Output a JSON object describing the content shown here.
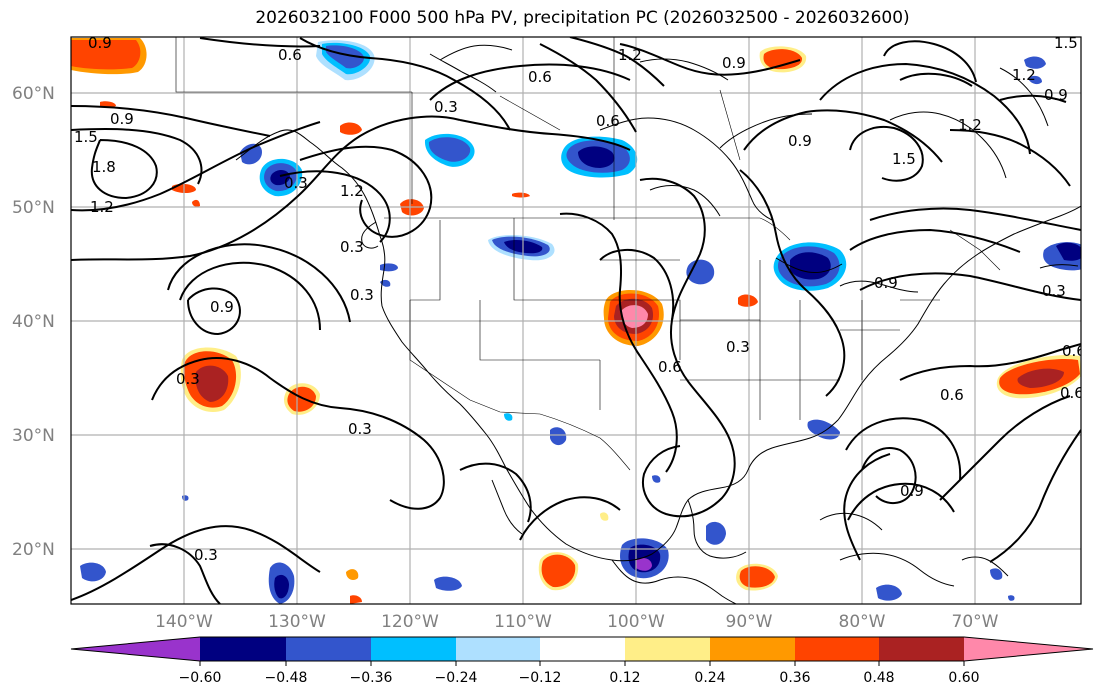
{
  "title": "2026032100 F000 500 hPa PV, precipitation PC (2026032500 - 2026032600)",
  "lat_labels": [
    "60°N",
    "50°N",
    "40°N",
    "30°N",
    "20°N"
  ],
  "lon_labels": [
    "140°W",
    "130°W",
    "120°W",
    "110°W",
    "100°W",
    "90°W",
    "80°W",
    "70°W"
  ],
  "colorbar": {
    "tick_labels": [
      "−0.60",
      "−0.48",
      "−0.36",
      "−0.24",
      "−0.12",
      "0.12",
      "0.24",
      "0.36",
      "0.48",
      "0.60"
    ],
    "colors": [
      "#9933cc",
      "#000080",
      "#3355cc",
      "#00bfff",
      "#aee0ff",
      "#ffffff",
      "#ffee88",
      "#ff9900",
      "#ff4400",
      "#aa2222",
      "#ff88aa"
    ]
  },
  "contour_labels": [
    "0.9",
    "0.6",
    "1.2",
    "0.6",
    "0.9",
    "1.5",
    "1.2",
    "0.9",
    "1.2",
    "1.5",
    "0.3",
    "0.6",
    "0.9",
    "1.5",
    "0.9",
    "1.8",
    "1.2",
    "0.3",
    "0.3",
    "1.2",
    "0.3",
    "0.6",
    "0.3",
    "0.9",
    "0.6",
    "0.3",
    "0.9",
    "0.3",
    "0.3",
    "0.6",
    "0.6",
    "0.9",
    "0.3"
  ]
}
